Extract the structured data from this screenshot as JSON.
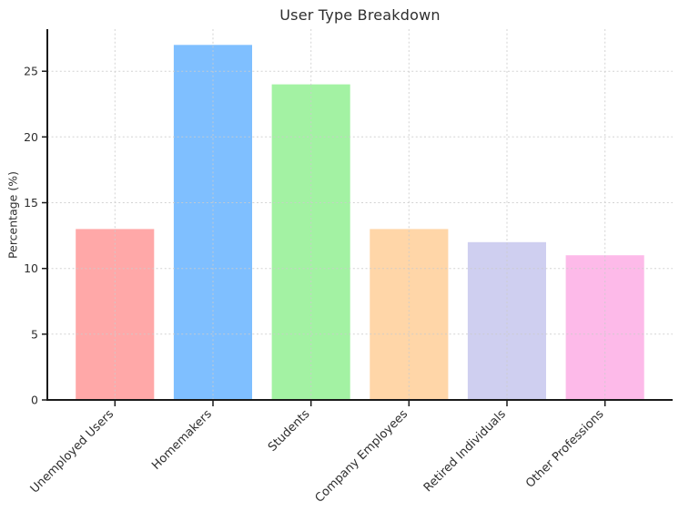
{
  "chart_data": {
    "type": "bar",
    "title": "User Type Breakdown",
    "ylabel": "Percentage (%)",
    "xlabel": "",
    "categories": [
      "Unemployed Users",
      "Homemakers",
      "Students",
      "Company Employees",
      "Retired Individuals",
      "Other Professions"
    ],
    "values": [
      13,
      27,
      24,
      13,
      12,
      11
    ],
    "bar_colors": [
      "#ffa8a8",
      "#7fbfff",
      "#a3f2a3",
      "#ffd6a8",
      "#cfcff0",
      "#fdbae9"
    ],
    "yticks": [
      0,
      5,
      10,
      15,
      20,
      25
    ],
    "ylim": [
      0,
      28.2
    ],
    "x_tick_rotation_deg": 45,
    "grid": true,
    "grid_color": "#cccccc",
    "axis_color": "#1a1a1a",
    "text_color": "#2e2e2e",
    "legend_position": "none"
  }
}
